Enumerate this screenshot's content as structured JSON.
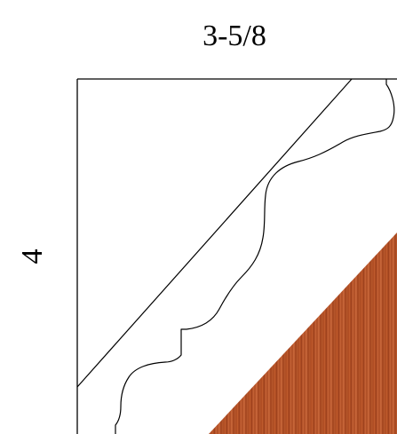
{
  "diagram": {
    "width_label": "3-5/8",
    "height_label": "4",
    "colors": {
      "line": "#000000",
      "background": "#ffffff",
      "wood_base": "#b5512a",
      "wood_light": "#cf6a3a",
      "wood_dark": "#8f3718"
    }
  }
}
